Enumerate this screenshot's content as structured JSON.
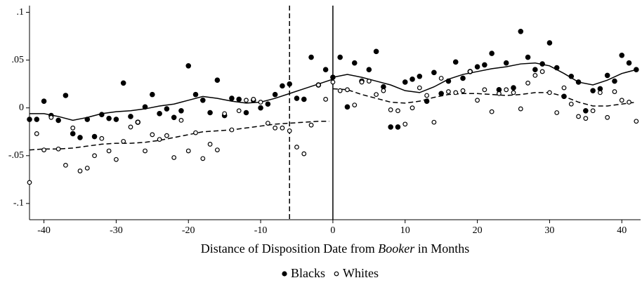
{
  "chart_data": {
    "type": "scatter",
    "xlabel": {
      "before": "Distance of Disposition Date from ",
      "italic": "Booker",
      "after": " in Months"
    },
    "xlim": [
      -42,
      42.6
    ],
    "ylim": [
      -0.117,
      0.107
    ],
    "xticks": [
      -40,
      -30,
      -20,
      -10,
      0,
      10,
      20,
      30,
      40
    ],
    "yticks": [
      {
        "value": 0.1,
        "label": ".1"
      },
      {
        "value": 0.05,
        "label": ".05"
      },
      0,
      {
        "value": -0.05,
        "label": "-.05"
      },
      {
        "value": -0.1,
        "label": "-.1"
      }
    ],
    "x": [
      -42,
      -41,
      -40,
      -39,
      -38,
      -37,
      -36,
      -35,
      -34,
      -33,
      -32,
      -31,
      -30,
      -29,
      -28,
      -27,
      -26,
      -25,
      -24,
      -23,
      -22,
      -21,
      -20,
      -19,
      -18,
      -17,
      -16,
      -15,
      -14,
      -13,
      -12,
      -11,
      -10,
      -9,
      -8,
      -7,
      -6,
      -5,
      -4,
      -3,
      -2,
      -1,
      0,
      1,
      2,
      3,
      4,
      5,
      6,
      7,
      8,
      9,
      10,
      11,
      12,
      13,
      14,
      15,
      16,
      17,
      18,
      19,
      20,
      21,
      22,
      23,
      24,
      25,
      26,
      27,
      28,
      29,
      30,
      31,
      32,
      33,
      34,
      35,
      36,
      37,
      38,
      39,
      40,
      41,
      42
    ],
    "series": [
      {
        "name": "Blacks",
        "color": "#000000",
        "marker": "filled",
        "values": [
          -0.012,
          -0.012,
          0.007,
          -0.008,
          -0.013,
          0.013,
          -0.027,
          -0.031,
          -0.012,
          -0.03,
          -0.007,
          -0.011,
          -0.012,
          0.026,
          -0.009,
          -0.015,
          0.001,
          0.014,
          -0.006,
          -0.001,
          -0.01,
          -0.003,
          0.044,
          0.014,
          0.008,
          -0.005,
          0.029,
          -0.008,
          0.01,
          0.009,
          -0.005,
          0.008,
          0.0,
          0.004,
          0.014,
          0.023,
          0.025,
          0.01,
          0.009,
          0.053,
          0.024,
          0.04,
          0.032,
          0.053,
          0.001,
          0.047,
          0.028,
          0.04,
          0.059,
          0.022,
          -0.02,
          -0.02,
          0.027,
          0.03,
          0.033,
          0.007,
          0.037,
          0.015,
          0.028,
          0.048,
          0.031,
          0.038,
          0.043,
          0.045,
          0.057,
          0.019,
          0.047,
          0.021,
          0.08,
          0.053,
          0.04,
          0.046,
          0.068,
          0.042,
          0.012,
          0.033,
          0.027,
          -0.003,
          0.018,
          0.02,
          0.034,
          0.028,
          0.055,
          0.047,
          0.04
        ]
      },
      {
        "name": "Whites",
        "color": "#000000",
        "marker": "hollow",
        "values": [
          -0.078,
          -0.027,
          -0.044,
          -0.01,
          -0.043,
          -0.06,
          -0.021,
          -0.066,
          -0.063,
          -0.05,
          -0.032,
          -0.045,
          -0.054,
          -0.035,
          -0.02,
          -0.015,
          -0.045,
          -0.028,
          -0.033,
          -0.029,
          -0.052,
          -0.013,
          -0.045,
          -0.026,
          -0.053,
          -0.038,
          -0.044,
          -0.006,
          -0.023,
          -0.003,
          0.008,
          0.009,
          0.006,
          -0.016,
          -0.021,
          -0.021,
          -0.024,
          -0.041,
          -0.048,
          -0.018,
          0.024,
          0.009,
          0.027,
          0.018,
          0.019,
          0.003,
          0.027,
          0.028,
          0.014,
          0.018,
          -0.002,
          -0.003,
          -0.017,
          0.0,
          0.021,
          0.013,
          -0.015,
          0.031,
          0.017,
          0.016,
          0.018,
          0.038,
          0.008,
          0.019,
          -0.004,
          0.015,
          0.019,
          0.016,
          -0.001,
          0.026,
          0.034,
          0.038,
          0.016,
          -0.005,
          0.021,
          0.004,
          -0.009,
          -0.011,
          -0.003,
          0.016,
          -0.01,
          0.017,
          0.008,
          0.006,
          -0.014
        ]
      }
    ],
    "fitted_lines": [
      {
        "style": "solid",
        "x": [
          -42,
          -40,
          -38,
          -36,
          -34,
          -32,
          -30,
          -28,
          -26,
          -24,
          -22,
          -20,
          -18,
          -16,
          -14,
          -12,
          -10,
          -8,
          -6,
          -4,
          -2,
          0,
          0,
          2,
          4,
          6,
          8,
          10,
          12,
          14,
          16,
          18,
          20,
          22,
          24,
          26,
          28,
          30,
          32,
          34,
          36,
          38,
          40,
          42
        ],
        "values": [
          -0.006,
          -0.006,
          -0.009,
          -0.013,
          -0.01,
          -0.006,
          -0.004,
          -0.003,
          -0.001,
          0.002,
          0.004,
          0.008,
          0.012,
          0.01,
          0.007,
          0.005,
          0.006,
          0.01,
          0.015,
          0.02,
          0.025,
          0.03,
          0.032,
          0.035,
          0.032,
          0.028,
          0.024,
          0.018,
          0.016,
          0.022,
          0.03,
          0.035,
          0.038,
          0.041,
          0.043,
          0.046,
          0.047,
          0.044,
          0.036,
          0.027,
          0.024,
          0.029,
          0.036,
          0.04
        ]
      },
      {
        "style": "dashed",
        "x": [
          -42,
          -40,
          -38,
          -36,
          -34,
          -32,
          -30,
          -28,
          -26,
          -24,
          -22,
          -20,
          -18,
          -16,
          -14,
          -12,
          -10,
          -8,
          -6,
          -4,
          -2,
          -0.5
        ],
        "values": [
          -0.044,
          -0.043,
          -0.043,
          -0.042,
          -0.04,
          -0.038,
          -0.037,
          -0.037,
          -0.036,
          -0.034,
          -0.031,
          -0.028,
          -0.025,
          -0.024,
          -0.023,
          -0.021,
          -0.019,
          -0.017,
          -0.016,
          -0.015,
          -0.014,
          -0.014
        ]
      },
      {
        "style": "dashed",
        "x": [
          0,
          2,
          4,
          6,
          8,
          10,
          12,
          14,
          16,
          18,
          20,
          22,
          24,
          26,
          28,
          30,
          32,
          34,
          36,
          38,
          40,
          42
        ],
        "values": [
          0.02,
          0.019,
          0.014,
          0.01,
          0.006,
          0.005,
          0.007,
          0.011,
          0.014,
          0.015,
          0.015,
          0.014,
          0.013,
          0.014,
          0.016,
          0.016,
          0.012,
          0.006,
          0.002,
          0.002,
          0.004,
          0.006
        ]
      }
    ],
    "reference_lines": [
      {
        "x": 0,
        "style": "solid"
      },
      {
        "x": -6,
        "style": "dashed"
      }
    ]
  }
}
